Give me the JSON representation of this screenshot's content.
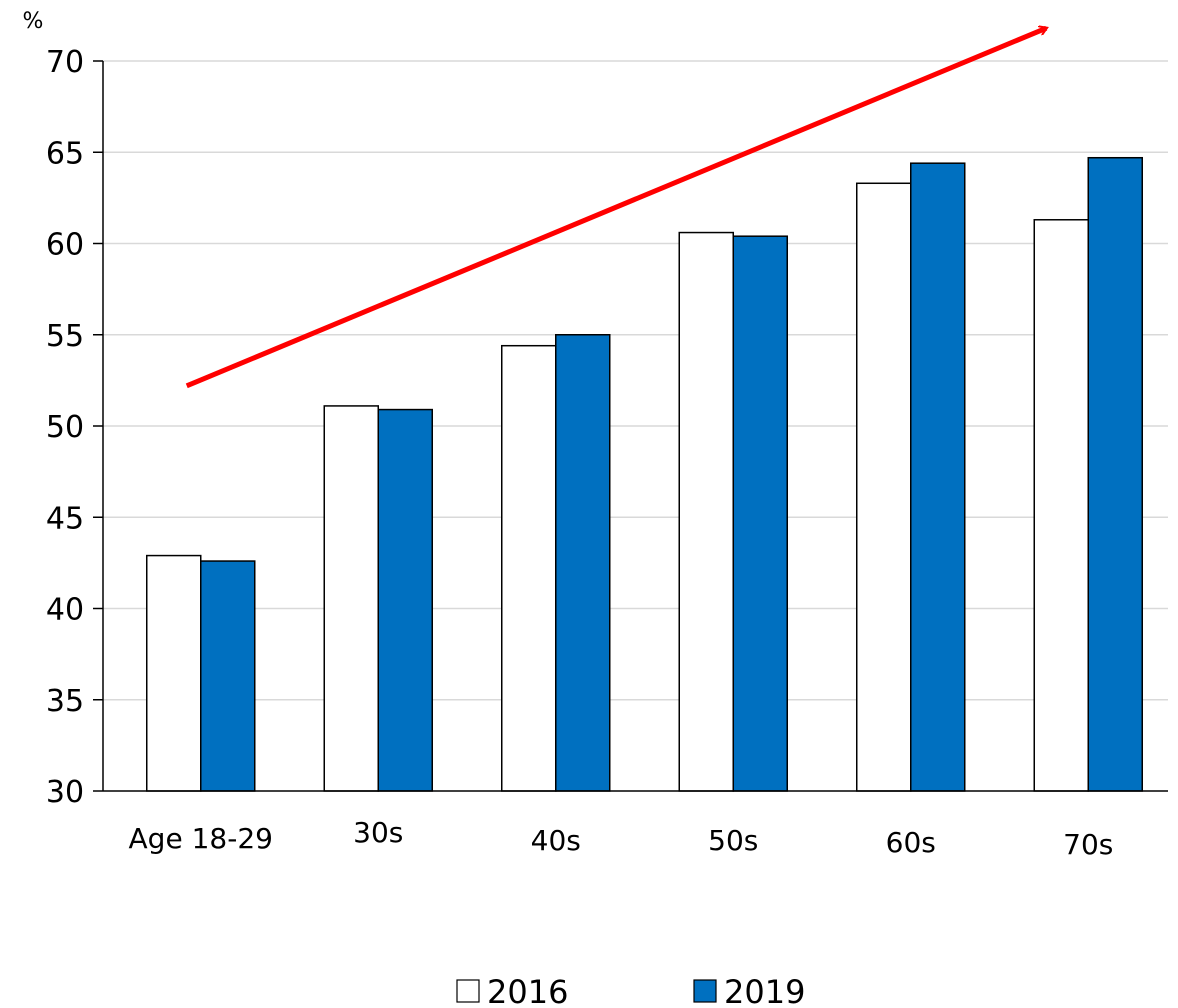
{
  "chart_data": {
    "type": "bar",
    "title": "",
    "xlabel": "",
    "ylabel": "%",
    "ylim": [
      30,
      70
    ],
    "yticks": [
      "30",
      "35",
      "40",
      "45",
      "50",
      "55",
      "60",
      "65",
      "70"
    ],
    "grid": true,
    "legend_position": "bottom",
    "categories": [
      "Age 18-29",
      "30s",
      "40s",
      "50s",
      "60s",
      "70s"
    ],
    "series": [
      {
        "name": "2016",
        "values": [
          42.9,
          51.1,
          54.4,
          60.6,
          63.3,
          61.3
        ],
        "color": "#ffffff"
      },
      {
        "name": "2019",
        "values": [
          42.6,
          50.9,
          55.0,
          60.4,
          64.4,
          64.7
        ],
        "color": "#0070c0"
      }
    ],
    "annotations": [
      {
        "type": "arrow",
        "from": [
          "Age 18-29",
          52.2
        ],
        "to": [
          "70s",
          71.8
        ],
        "color": "#ff0000"
      }
    ]
  }
}
